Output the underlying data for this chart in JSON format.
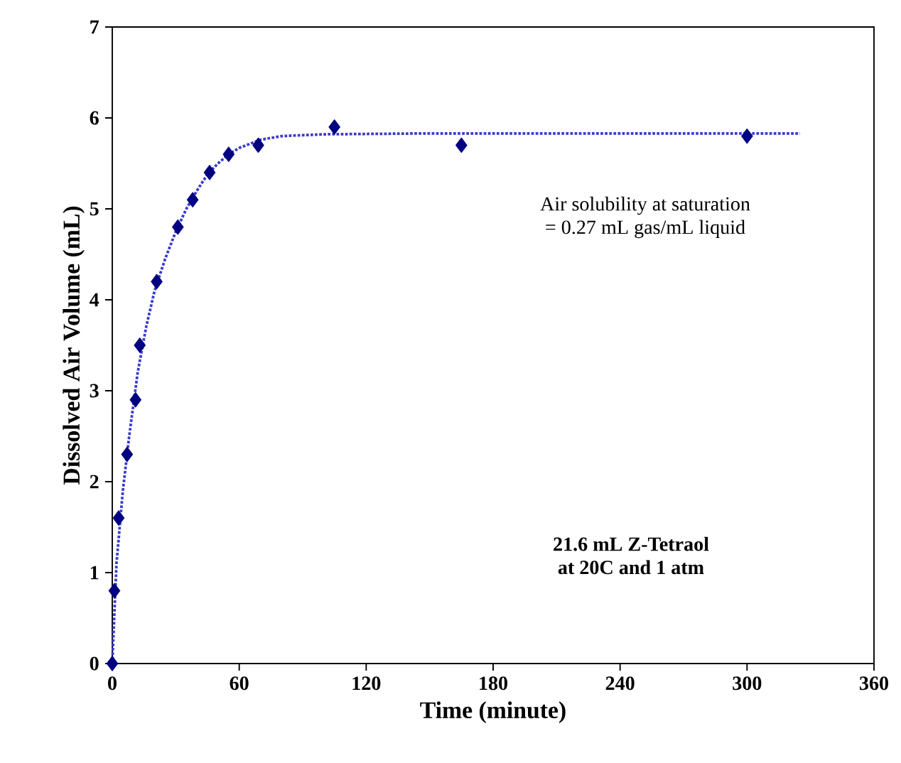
{
  "chart_data": {
    "type": "scatter",
    "xlabel": "Time (minute)",
    "ylabel": "Dissolved Air Volume (mL)",
    "xlim": [
      0,
      360
    ],
    "ylim": [
      0,
      7
    ],
    "xticks": [
      0,
      60,
      120,
      180,
      240,
      300,
      360
    ],
    "yticks": [
      0,
      1,
      2,
      3,
      4,
      5,
      6,
      7
    ],
    "grid": false,
    "annotations": [
      "Air solubility at saturation\n= 0.27 mL gas/mL liquid",
      "21.6 mL Z-Tetraol\nat 20C and 1 atm"
    ],
    "series": [
      {
        "type": "line",
        "line_style": "dotted",
        "marker": "none",
        "color": "#3a3acc",
        "x": [
          0,
          2,
          5,
          8,
          12,
          16,
          20,
          25,
          30,
          35,
          40,
          45,
          50,
          55,
          60,
          70,
          80,
          100,
          150,
          200,
          250,
          300,
          325
        ],
        "values": [
          0,
          1.1,
          1.9,
          2.5,
          3.2,
          3.7,
          4.1,
          4.45,
          4.75,
          5.0,
          5.2,
          5.38,
          5.5,
          5.6,
          5.67,
          5.76,
          5.8,
          5.82,
          5.83,
          5.83,
          5.83,
          5.83,
          5.83
        ]
      },
      {
        "marker": "diamond",
        "color": "#000080",
        "x": [
          0,
          1,
          3,
          7,
          11,
          13,
          21,
          31,
          38,
          46,
          55,
          69,
          105,
          165,
          300
        ],
        "values": [
          0,
          0.8,
          1.6,
          2.3,
          2.9,
          3.5,
          4.2,
          4.8,
          5.1,
          5.4,
          5.6,
          5.7,
          5.9,
          5.7,
          5.8
        ]
      }
    ]
  }
}
